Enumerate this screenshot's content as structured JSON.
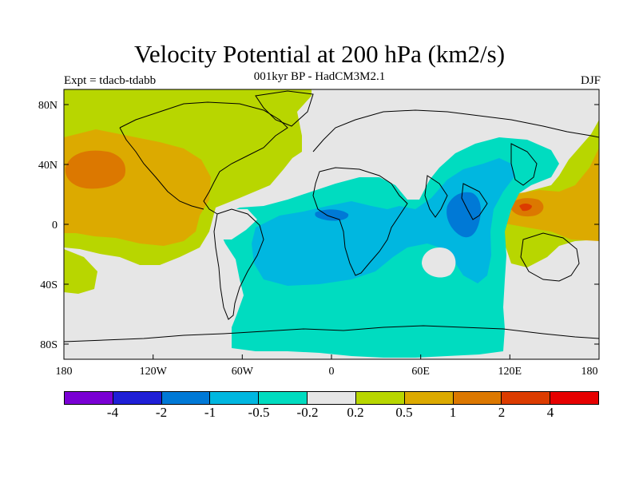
{
  "title": "Velocity Potential at 200 hPa (km2/s)",
  "subtitle": "001kyr BP - HadCM3M2.1",
  "left_label": "Expt = tdacb-tdabb",
  "right_label": "DJF",
  "map": {
    "lat_ticks": [
      "80N",
      "40N",
      "0",
      "40S",
      "80S"
    ],
    "lon_ticks": [
      "180",
      "120W",
      "60W",
      "0",
      "60E",
      "120E",
      "180"
    ],
    "ocean_color": "#e6e6e6",
    "coastline_color": "#000000"
  },
  "colorbar": {
    "colors": [
      "#7a00d4",
      "#1f1fd6",
      "#0079d6",
      "#00b7e0",
      "#00dcc0",
      "#e6e6e6",
      "#b8d600",
      "#dcaa00",
      "#dc7800",
      "#dc3c00",
      "#e60000"
    ],
    "labels": [
      "-4",
      "-2",
      "-1",
      "-0.5",
      "-0.2",
      "0.2",
      "0.5",
      "1",
      "2",
      "4"
    ]
  }
}
